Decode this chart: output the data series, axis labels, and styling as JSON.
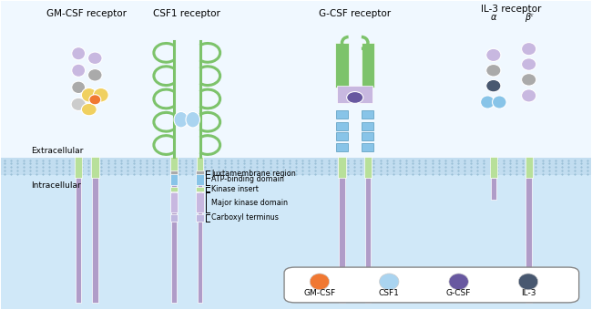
{
  "title_gmcsf": "GM-CSF receptor",
  "title_csf1": "CSF1 receptor",
  "title_gcsf": "G-CSF receptor",
  "title_il3": "IL-3 receptor",
  "colors": {
    "green": "#7dc36b",
    "light_green": "#b8e09a",
    "purple": "#b09cc8",
    "light_purple": "#c8b8e0",
    "blue": "#88c4e8",
    "light_blue": "#aad4f0",
    "dark_gray": "#888899",
    "gray": "#aaaaaa",
    "light_gray": "#cccccc",
    "orange": "#f07832",
    "yellow": "#f0d060",
    "dark_purple": "#6858a0",
    "dark_blue_gray": "#485870"
  },
  "labels": {
    "extracellular": "Extracellular",
    "intracellular": "Intracellular",
    "juxtamembrane": "Juxtamembrane region",
    "atp": "ATP-binding domain",
    "kinase_insert": "Kinase insert",
    "major_kinase": "Major kinase domain",
    "carboxyl": "Carboxyl terminus",
    "alpha": "α",
    "beta_c": "βᶜ"
  },
  "legend": {
    "gmcsf_color": "#f07832",
    "csf1_color": "#aad4f0",
    "gcsf_color": "#6858a0",
    "il3_color": "#485870",
    "labels": [
      "GM-CSF",
      "CSF1",
      "G-CSF",
      "IL-3"
    ]
  }
}
